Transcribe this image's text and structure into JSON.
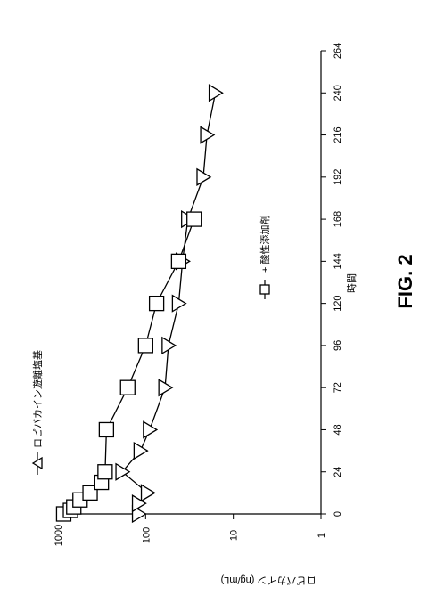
{
  "chart_data": {
    "type": "line",
    "orientation": "rotated-90-clockwise",
    "xlabel": "時間",
    "ylabel": "ロピバカイン (ng/mL)",
    "xlim": [
      0,
      264
    ],
    "x_ticks": [
      0,
      24,
      48,
      72,
      96,
      120,
      144,
      168,
      192,
      216,
      240,
      264
    ],
    "ylim": [
      1,
      1000
    ],
    "yscale": "log",
    "y_ticks": [
      1,
      10,
      100,
      1000
    ],
    "grid": false,
    "legend_placement": "top",
    "series": [
      {
        "name": "ロピバカイン遊離塩基",
        "marker": "triangle",
        "x": [
          0,
          6,
          12,
          24,
          36,
          48,
          72,
          96,
          120,
          144,
          168,
          192,
          216,
          240
        ],
        "y": [
          120,
          120,
          95,
          185,
          115,
          90,
          60,
          55,
          42,
          38,
          33,
          22,
          20,
          16
        ]
      },
      {
        "name": "+ 酸性添加剤",
        "marker": "square",
        "x": [
          0,
          2,
          4,
          8,
          12,
          18,
          24,
          48,
          72,
          96,
          120,
          144,
          168
        ],
        "y": [
          860,
          720,
          660,
          560,
          430,
          320,
          290,
          280,
          160,
          100,
          75,
          42,
          28
        ]
      }
    ]
  },
  "figure_label": "FIG. 2"
}
